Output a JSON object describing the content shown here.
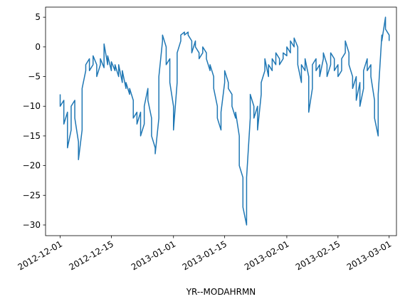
{
  "chart_data": {
    "type": "line",
    "title": "",
    "xlabel": "YR--MODAHRMN",
    "ylabel": "",
    "grid": false,
    "legend": "none",
    "xlim": [
      "2012-11-27",
      "2013-03-03"
    ],
    "ylim": [
      -31.8,
      6.7
    ],
    "x_ticks": [
      "2012-12-01",
      "2012-12-15",
      "2013-01-01",
      "2013-01-15",
      "2013-02-01",
      "2013-02-15",
      "2013-03-01"
    ],
    "y_ticks": [
      5,
      0,
      -5,
      -10,
      -15,
      -20,
      -25,
      -30
    ],
    "series": [
      {
        "color": "#1f77b4",
        "points": [
          [
            "2012-12-01",
            -8
          ],
          [
            "2012-12-01",
            -10
          ],
          [
            "2012-12-02",
            -9
          ],
          [
            "2012-12-02",
            -13
          ],
          [
            "2012-12-03",
            -11
          ],
          [
            "2012-12-03",
            -17
          ],
          [
            "2012-12-04",
            -14
          ],
          [
            "2012-12-04",
            -10
          ],
          [
            "2012-12-05",
            -9
          ],
          [
            "2012-12-05",
            -12
          ],
          [
            "2012-12-06",
            -16
          ],
          [
            "2012-12-06",
            -19
          ],
          [
            "2012-12-07",
            -14
          ],
          [
            "2012-12-07",
            -7
          ],
          [
            "2012-12-08",
            -4
          ],
          [
            "2012-12-08",
            -3
          ],
          [
            "2012-12-09",
            -2
          ],
          [
            "2012-12-09",
            -4
          ],
          [
            "2012-12-10",
            -3
          ],
          [
            "2012-12-10",
            -1.5
          ],
          [
            "2012-12-11",
            -3
          ],
          [
            "2012-12-11",
            -5
          ],
          [
            "2012-12-12",
            -3
          ],
          [
            "2012-12-12",
            -2
          ],
          [
            "2012-12-13",
            -3.5
          ],
          [
            "2012-12-13",
            0.5
          ],
          [
            "2012-12-14",
            -3
          ],
          [
            "2012-12-14",
            -1.5
          ],
          [
            "2012-12-15",
            -4
          ],
          [
            "2012-12-15",
            -2.5
          ],
          [
            "2012-12-16",
            -4
          ],
          [
            "2012-12-16",
            -3
          ],
          [
            "2012-12-17",
            -5
          ],
          [
            "2012-12-17",
            -3
          ],
          [
            "2012-12-18",
            -6
          ],
          [
            "2012-12-18",
            -4
          ],
          [
            "2012-12-19",
            -7
          ],
          [
            "2012-12-19",
            -6
          ],
          [
            "2012-12-20",
            -8
          ],
          [
            "2012-12-20",
            -7
          ],
          [
            "2012-12-21",
            -9
          ],
          [
            "2012-12-21",
            -12
          ],
          [
            "2012-12-22",
            -11
          ],
          [
            "2012-12-22",
            -13
          ],
          [
            "2012-12-23",
            -11
          ],
          [
            "2012-12-23",
            -15
          ],
          [
            "2012-12-24",
            -13
          ],
          [
            "2012-12-24",
            -10
          ],
          [
            "2012-12-25",
            -7
          ],
          [
            "2012-12-25",
            -9
          ],
          [
            "2012-12-26",
            -12
          ],
          [
            "2012-12-26",
            -15
          ],
          [
            "2012-12-27",
            -17
          ],
          [
            "2012-12-27",
            -18
          ],
          [
            "2012-12-28",
            -12
          ],
          [
            "2012-12-28",
            -5
          ],
          [
            "2012-12-29",
            1
          ],
          [
            "2012-12-29",
            2
          ],
          [
            "2012-12-30",
            0
          ],
          [
            "2012-12-30",
            -3
          ],
          [
            "2012-12-31",
            -2
          ],
          [
            "2012-12-31",
            -6
          ],
          [
            "2013-01-01",
            -10
          ],
          [
            "2013-01-01",
            -14
          ],
          [
            "2013-01-02",
            -6
          ],
          [
            "2013-01-02",
            -1
          ],
          [
            "2013-01-03",
            1
          ],
          [
            "2013-01-03",
            2
          ],
          [
            "2013-01-04",
            2.5
          ],
          [
            "2013-01-04",
            2
          ],
          [
            "2013-01-05",
            2.5
          ],
          [
            "2013-01-05",
            2
          ],
          [
            "2013-01-06",
            1
          ],
          [
            "2013-01-06",
            -1
          ],
          [
            "2013-01-07",
            1
          ],
          [
            "2013-01-07",
            0
          ],
          [
            "2013-01-08",
            -1
          ],
          [
            "2013-01-08",
            -2
          ],
          [
            "2013-01-09",
            -1
          ],
          [
            "2013-01-09",
            0
          ],
          [
            "2013-01-10",
            -1
          ],
          [
            "2013-01-10",
            -2
          ],
          [
            "2013-01-11",
            -4
          ],
          [
            "2013-01-11",
            -3
          ],
          [
            "2013-01-12",
            -5
          ],
          [
            "2013-01-12",
            -7
          ],
          [
            "2013-01-13",
            -10
          ],
          [
            "2013-01-13",
            -12
          ],
          [
            "2013-01-14",
            -14
          ],
          [
            "2013-01-14",
            -11
          ],
          [
            "2013-01-15",
            -6
          ],
          [
            "2013-01-15",
            -4
          ],
          [
            "2013-01-16",
            -6
          ],
          [
            "2013-01-16",
            -7
          ],
          [
            "2013-01-17",
            -8
          ],
          [
            "2013-01-17",
            -10
          ],
          [
            "2013-01-18",
            -12
          ],
          [
            "2013-01-18",
            -11
          ],
          [
            "2013-01-19",
            -15
          ],
          [
            "2013-01-19",
            -20
          ],
          [
            "2013-01-20",
            -22
          ],
          [
            "2013-01-20",
            -27
          ],
          [
            "2013-01-21",
            -30
          ],
          [
            "2013-01-21",
            -22
          ],
          [
            "2013-01-22",
            -12
          ],
          [
            "2013-01-22",
            -8
          ],
          [
            "2013-01-23",
            -10
          ],
          [
            "2013-01-23",
            -12
          ],
          [
            "2013-01-24",
            -10
          ],
          [
            "2013-01-24",
            -14
          ],
          [
            "2013-01-25",
            -8
          ],
          [
            "2013-01-25",
            -6
          ],
          [
            "2013-01-26",
            -4
          ],
          [
            "2013-01-26",
            -2
          ],
          [
            "2013-01-27",
            -5
          ],
          [
            "2013-01-27",
            -3
          ],
          [
            "2013-01-28",
            -4
          ],
          [
            "2013-01-28",
            -2
          ],
          [
            "2013-01-29",
            -3
          ],
          [
            "2013-01-29",
            -1
          ],
          [
            "2013-01-30",
            -2
          ],
          [
            "2013-01-30",
            -3
          ],
          [
            "2013-01-31",
            -2
          ],
          [
            "2013-01-31",
            -1
          ],
          [
            "2013-02-01",
            -1.5
          ],
          [
            "2013-02-01",
            0
          ],
          [
            "2013-02-02",
            -1
          ],
          [
            "2013-02-02",
            1
          ],
          [
            "2013-02-03",
            0
          ],
          [
            "2013-02-03",
            1.5
          ],
          [
            "2013-02-04",
            0
          ],
          [
            "2013-02-04",
            -3
          ],
          [
            "2013-02-05",
            -6
          ],
          [
            "2013-02-05",
            -3
          ],
          [
            "2013-02-06",
            -4
          ],
          [
            "2013-02-06",
            -2
          ],
          [
            "2013-02-07",
            -5
          ],
          [
            "2013-02-07",
            -11
          ],
          [
            "2013-02-08",
            -7
          ],
          [
            "2013-02-08",
            -3
          ],
          [
            "2013-02-09",
            -2
          ],
          [
            "2013-02-09",
            -4
          ],
          [
            "2013-02-10",
            -3
          ],
          [
            "2013-02-10",
            -5
          ],
          [
            "2013-02-11",
            -2
          ],
          [
            "2013-02-11",
            -1
          ],
          [
            "2013-02-12",
            -3
          ],
          [
            "2013-02-12",
            -5
          ],
          [
            "2013-02-13",
            -3
          ],
          [
            "2013-02-13",
            -1
          ],
          [
            "2013-02-14",
            -2
          ],
          [
            "2013-02-14",
            -4
          ],
          [
            "2013-02-15",
            -3
          ],
          [
            "2013-02-15",
            -5
          ],
          [
            "2013-02-16",
            -4
          ],
          [
            "2013-02-16",
            -2
          ],
          [
            "2013-02-17",
            -1
          ],
          [
            "2013-02-17",
            1
          ],
          [
            "2013-02-18",
            -1
          ],
          [
            "2013-02-18",
            -3
          ],
          [
            "2013-02-19",
            -5
          ],
          [
            "2013-02-19",
            -7
          ],
          [
            "2013-02-20",
            -5
          ],
          [
            "2013-02-20",
            -9
          ],
          [
            "2013-02-21",
            -6
          ],
          [
            "2013-02-21",
            -10
          ],
          [
            "2013-02-22",
            -7
          ],
          [
            "2013-02-22",
            -4
          ],
          [
            "2013-02-23",
            -2
          ],
          [
            "2013-02-23",
            -4
          ],
          [
            "2013-02-24",
            -3
          ],
          [
            "2013-02-24",
            -5
          ],
          [
            "2013-02-25",
            -9
          ],
          [
            "2013-02-25",
            -12
          ],
          [
            "2013-02-26",
            -15
          ],
          [
            "2013-02-26",
            -8
          ],
          [
            "2013-02-27",
            2
          ],
          [
            "2013-02-27",
            1
          ],
          [
            "2013-02-28",
            5
          ],
          [
            "2013-02-28",
            3
          ],
          [
            "2013-03-01",
            2
          ],
          [
            "2013-03-01",
            1
          ]
        ]
      }
    ]
  }
}
